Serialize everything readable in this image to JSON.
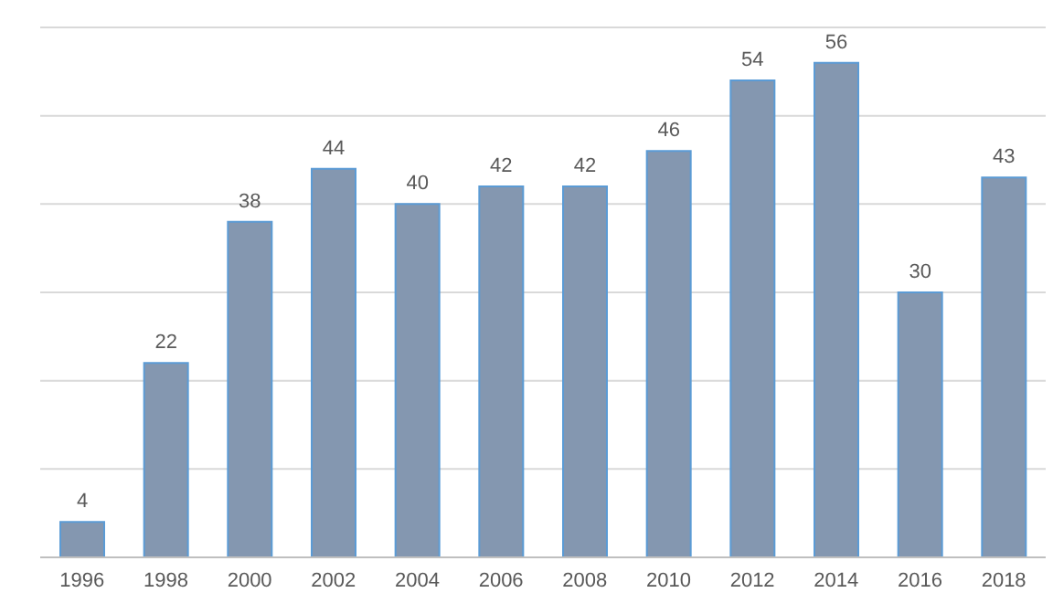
{
  "chart_data": {
    "type": "bar",
    "categories": [
      "1996",
      "1998",
      "2000",
      "2002",
      "2004",
      "2006",
      "2008",
      "2010",
      "2012",
      "2014",
      "2016",
      "2018"
    ],
    "values": [
      4,
      22,
      38,
      44,
      40,
      42,
      42,
      46,
      54,
      56,
      30,
      43
    ],
    "color": "#8497b0",
    "ylim": [
      0,
      60
    ],
    "yticks": [
      {
        "value": 0,
        "label": null
      },
      {
        "value": 10,
        "label": null
      },
      {
        "value": 20,
        "label": null
      },
      {
        "value": 30,
        "label": null
      },
      {
        "value": 40,
        "label": null
      },
      {
        "value": 50,
        "label": null
      },
      {
        "value": 60,
        "label": null
      }
    ],
    "grid": "y",
    "tick_labels": "x",
    "data_labels": true,
    "legend": false
  }
}
